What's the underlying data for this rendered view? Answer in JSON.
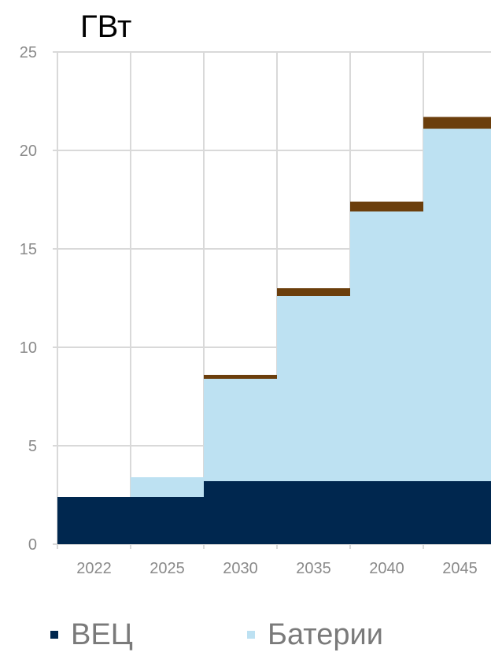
{
  "chart_data": {
    "type": "area",
    "unit": "ГВт",
    "categories": [
      "2022",
      "2025",
      "2030",
      "2035",
      "2040",
      "2045"
    ],
    "ylim": [
      0,
      25
    ],
    "yticks": [
      "0",
      "5",
      "10",
      "15",
      "20",
      "25"
    ],
    "grid": true,
    "series": [
      {
        "name": "ВЕЦ",
        "values": [
          2.4,
          2.4,
          3.2,
          3.2,
          3.2,
          3.2
        ],
        "color": "#00274f"
      },
      {
        "name": "Батерии",
        "values": [
          0,
          1.0,
          5.2,
          9.4,
          13.7,
          17.9
        ],
        "color": "#bde1f2"
      },
      {
        "values": [
          0,
          0,
          0.2,
          0.4,
          0.5,
          0.6
        ],
        "color": "#6b3e0c"
      }
    ],
    "legend_position": "bottom"
  }
}
